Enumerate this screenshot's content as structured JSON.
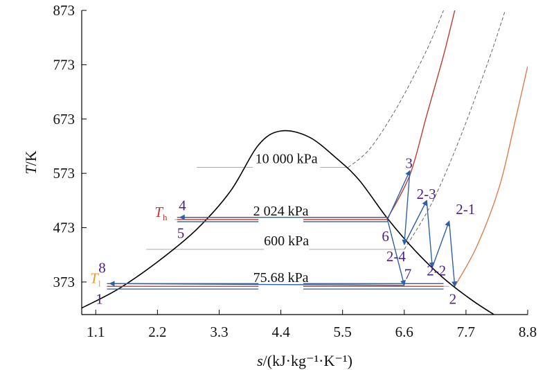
{
  "chart_data": {
    "type": "line",
    "title": "",
    "xlabel": {
      "var": "s",
      "unit": "/(kJ·kg⁻¹·K⁻¹)"
    },
    "ylabel": {
      "var": "T",
      "unit": "/K"
    },
    "xlim": [
      0.85,
      8.8
    ],
    "ylim": [
      313,
      873
    ],
    "xticks": [
      "1.1",
      "2.2",
      "3.3",
      "4.4",
      "5.5",
      "6.6",
      "7.7",
      "8.8"
    ],
    "yticks": [
      "373",
      "473",
      "573",
      "673",
      "773",
      "873"
    ],
    "saturation_dome": [
      [
        0.85,
        325
      ],
      [
        1.5,
        360
      ],
      [
        2.2,
        410
      ],
      [
        2.9,
        470
      ],
      [
        3.5,
        540
      ],
      [
        4.0,
        625
      ],
      [
        4.4,
        651
      ],
      [
        4.9,
        640
      ],
      [
        5.4,
        600
      ],
      [
        5.8,
        560
      ],
      [
        6.3,
        490
      ],
      [
        6.8,
        430
      ],
      [
        7.3,
        380
      ],
      [
        7.8,
        340
      ],
      [
        8.2,
        313
      ]
    ],
    "isobars": [
      {
        "label": "10 000 kPa",
        "y": 584,
        "segments": [
          [
            2.9,
            3.9
          ],
          [
            5.1,
            5.6
          ]
        ],
        "color": "#aaaaaa"
      },
      {
        "label": "2 024 kPa",
        "y": 488,
        "segments": [
          [
            2.5,
            4.0
          ],
          [
            4.8,
            6.3
          ]
        ],
        "color": "#aaaaaa"
      },
      {
        "label": "600 kPa",
        "y": 433,
        "segments": [
          [
            2.0,
            4.1
          ],
          [
            4.9,
            6.6
          ]
        ],
        "color": "#aaaaaa"
      },
      {
        "label": "75.68 kPa",
        "y": 365,
        "segments": [
          [
            1.3,
            4.0
          ],
          [
            4.8,
            7.4
          ]
        ],
        "color": "#aaaaaa"
      }
    ],
    "superheat_curves": [
      {
        "color": "#666666",
        "dashed": true,
        "points": [
          [
            5.6,
            584
          ],
          [
            6.0,
            620
          ],
          [
            6.5,
            700
          ],
          [
            7.0,
            800
          ],
          [
            7.3,
            873
          ]
        ]
      },
      {
        "color": "#c0392b",
        "dashed": false,
        "points": [
          [
            6.3,
            490
          ],
          [
            6.7,
            570
          ],
          [
            7.0,
            680
          ],
          [
            7.3,
            790
          ],
          [
            7.5,
            873
          ]
        ]
      },
      {
        "color": "#666666",
        "dashed": true,
        "points": [
          [
            6.6,
            433
          ],
          [
            7.1,
            520
          ],
          [
            7.6,
            640
          ],
          [
            8.1,
            780
          ],
          [
            8.4,
            873
          ]
        ]
      },
      {
        "color": "#e07b4f",
        "dashed": false,
        "points": [
          [
            7.5,
            365
          ],
          [
            7.9,
            440
          ],
          [
            8.3,
            550
          ],
          [
            8.6,
            680
          ],
          [
            8.8,
            770
          ]
        ]
      }
    ],
    "parallel_lines": [
      {
        "color": "#2e5fa8",
        "y": 492,
        "segments": [
          [
            2.55,
            4.0
          ],
          [
            4.8,
            6.3
          ]
        ]
      },
      {
        "color": "#c0392b",
        "y": 488,
        "segments": [
          [
            2.55,
            4.0
          ],
          [
            4.8,
            6.3
          ]
        ]
      },
      {
        "color": "#2e5fa8",
        "y": 484,
        "segments": [
          [
            2.55,
            4.0
          ],
          [
            4.8,
            6.3
          ]
        ]
      },
      {
        "color": "#2e5fa8",
        "y": 370,
        "segments": [
          [
            1.3,
            4.0
          ],
          [
            4.8,
            7.3
          ]
        ]
      },
      {
        "color": "#c0392b",
        "y": 365,
        "segments": [
          [
            1.3,
            4.0
          ],
          [
            4.8,
            7.3
          ]
        ]
      },
      {
        "color": "#2e5fa8",
        "y": 360,
        "segments": [
          [
            1.3,
            4.0
          ],
          [
            4.8,
            7.3
          ]
        ]
      }
    ],
    "process_arrows": [
      [
        [
          6.3,
          488
        ],
        [
          6.7,
          578
        ]
      ],
      [
        [
          6.7,
          578
        ],
        [
          6.6,
          442
        ]
      ],
      [
        [
          6.6,
          442
        ],
        [
          7.0,
          523
        ]
      ],
      [
        [
          7.0,
          523
        ],
        [
          7.1,
          400
        ]
      ],
      [
        [
          7.1,
          400
        ],
        [
          7.4,
          485
        ]
      ],
      [
        [
          7.4,
          485
        ],
        [
          7.5,
          365
        ]
      ],
      [
        [
          6.3,
          488
        ],
        [
          6.6,
          367
        ]
      ],
      [
        [
          6.6,
          367
        ],
        [
          1.35,
          370
        ]
      ],
      [
        [
          6.3,
          492
        ],
        [
          2.6,
          492
        ]
      ]
    ],
    "point_labels": [
      {
        "text": "3",
        "x": 6.62,
        "y": 583
      },
      {
        "text": "2-3",
        "x": 6.82,
        "y": 526
      },
      {
        "text": "2-1",
        "x": 7.52,
        "y": 498
      },
      {
        "text": "4",
        "x": 2.58,
        "y": 505
      },
      {
        "text": "5",
        "x": 2.55,
        "y": 454
      },
      {
        "text": "6",
        "x": 6.2,
        "y": 448
      },
      {
        "text": "2-4",
        "x": 6.28,
        "y": 411
      },
      {
        "text": "2-2",
        "x": 7.0,
        "y": 385
      },
      {
        "text": "7",
        "x": 6.6,
        "y": 379
      },
      {
        "text": "8",
        "x": 1.15,
        "y": 390
      },
      {
        "text": "1",
        "x": 1.1,
        "y": 333
      },
      {
        "text": "2",
        "x": 7.4,
        "y": 333
      }
    ],
    "temp_labels": [
      {
        "main": "T",
        "sub": "h",
        "x": 2.15,
        "y": 493,
        "color": "#c0392b"
      },
      {
        "main": "T",
        "sub": "l",
        "x": 1.0,
        "y": 371,
        "color": "#e69a2a"
      }
    ]
  }
}
